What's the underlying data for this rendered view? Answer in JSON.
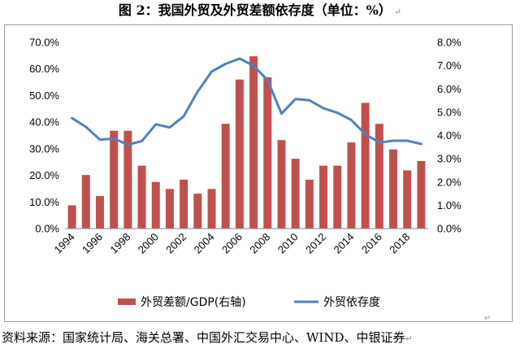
{
  "figure": {
    "title": "图 2：我国外贸及外贸差额依存度（单位：%）",
    "source": "资料来源：国家统计局、海关总署、中国外汇交易中心、WIND、中银证券",
    "paragraph_mark": "↵"
  },
  "chart_data": {
    "type": "bar",
    "years": [
      1994,
      1995,
      1996,
      1997,
      1998,
      1999,
      2000,
      2001,
      2002,
      2003,
      2004,
      2005,
      2006,
      2007,
      2008,
      2009,
      2010,
      2011,
      2012,
      2013,
      2014,
      2015,
      2016,
      2017,
      2018,
      2019
    ],
    "x_tick_labels": [
      "1994",
      "1996",
      "1998",
      "2000",
      "2002",
      "2004",
      "2006",
      "2008",
      "2010",
      "2012",
      "2014",
      "2016",
      "2018"
    ],
    "series": [
      {
        "name": "外贸差额/GDP(右轴)",
        "type": "bar",
        "axis": "right",
        "color": "#c0504d",
        "values": [
          1.0,
          2.3,
          1.4,
          4.2,
          4.2,
          2.7,
          2.0,
          1.7,
          2.1,
          1.5,
          1.7,
          4.5,
          6.4,
          7.4,
          6.5,
          3.8,
          3.0,
          2.1,
          2.7,
          2.7,
          3.7,
          5.4,
          4.5,
          3.4,
          2.5,
          2.9
        ]
      },
      {
        "name": "外贸依存度",
        "type": "line",
        "axis": "left",
        "color": "#4f81bd",
        "values": [
          41.5,
          38.2,
          33.4,
          33.8,
          31.5,
          32.9,
          39.2,
          38.0,
          42.2,
          51.5,
          59.0,
          61.9,
          63.9,
          61.2,
          55.8,
          43.2,
          48.7,
          48.2,
          45.2,
          43.5,
          40.8,
          35.5,
          32.3,
          33.0,
          33.0,
          31.8
        ]
      }
    ],
    "y_left": {
      "min": 0,
      "max": 70,
      "step": 10,
      "tick_labels": [
        "0.0%",
        "10.0%",
        "20.0%",
        "30.0%",
        "40.0%",
        "50.0%",
        "60.0%",
        "70.0%"
      ]
    },
    "y_right": {
      "min": 0,
      "max": 8,
      "step": 1,
      "tick_labels": [
        "0.0%",
        "1.0%",
        "2.0%",
        "3.0%",
        "4.0%",
        "5.0%",
        "6.0%",
        "7.0%",
        "8.0%"
      ]
    },
    "legend_position": "bottom",
    "grid": false
  }
}
